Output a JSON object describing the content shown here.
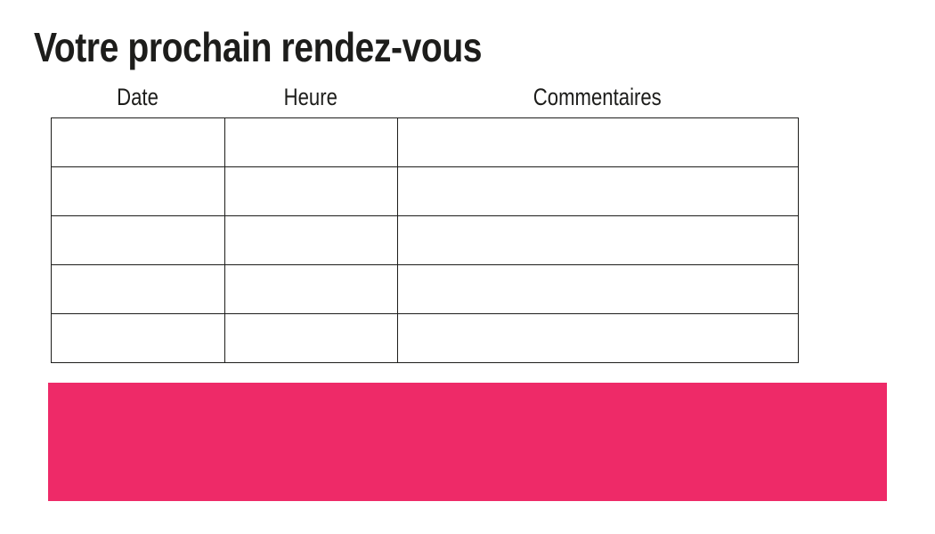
{
  "page": {
    "title": "Votre prochain rendez-vous"
  },
  "table": {
    "columns": [
      {
        "label": "Date"
      },
      {
        "label": "Heure"
      },
      {
        "label": "Commentaires"
      }
    ],
    "rows": [
      [
        "",
        "",
        ""
      ],
      [
        "",
        "",
        ""
      ],
      [
        "",
        "",
        ""
      ],
      [
        "",
        "",
        ""
      ],
      [
        "",
        "",
        ""
      ]
    ]
  },
  "banner": {
    "text": ""
  },
  "colors": {
    "accent_pink": "#EE2A68",
    "text_black": "#1D1D1B",
    "table_border": "#1D1D1B",
    "background": "#FFFFFF"
  }
}
